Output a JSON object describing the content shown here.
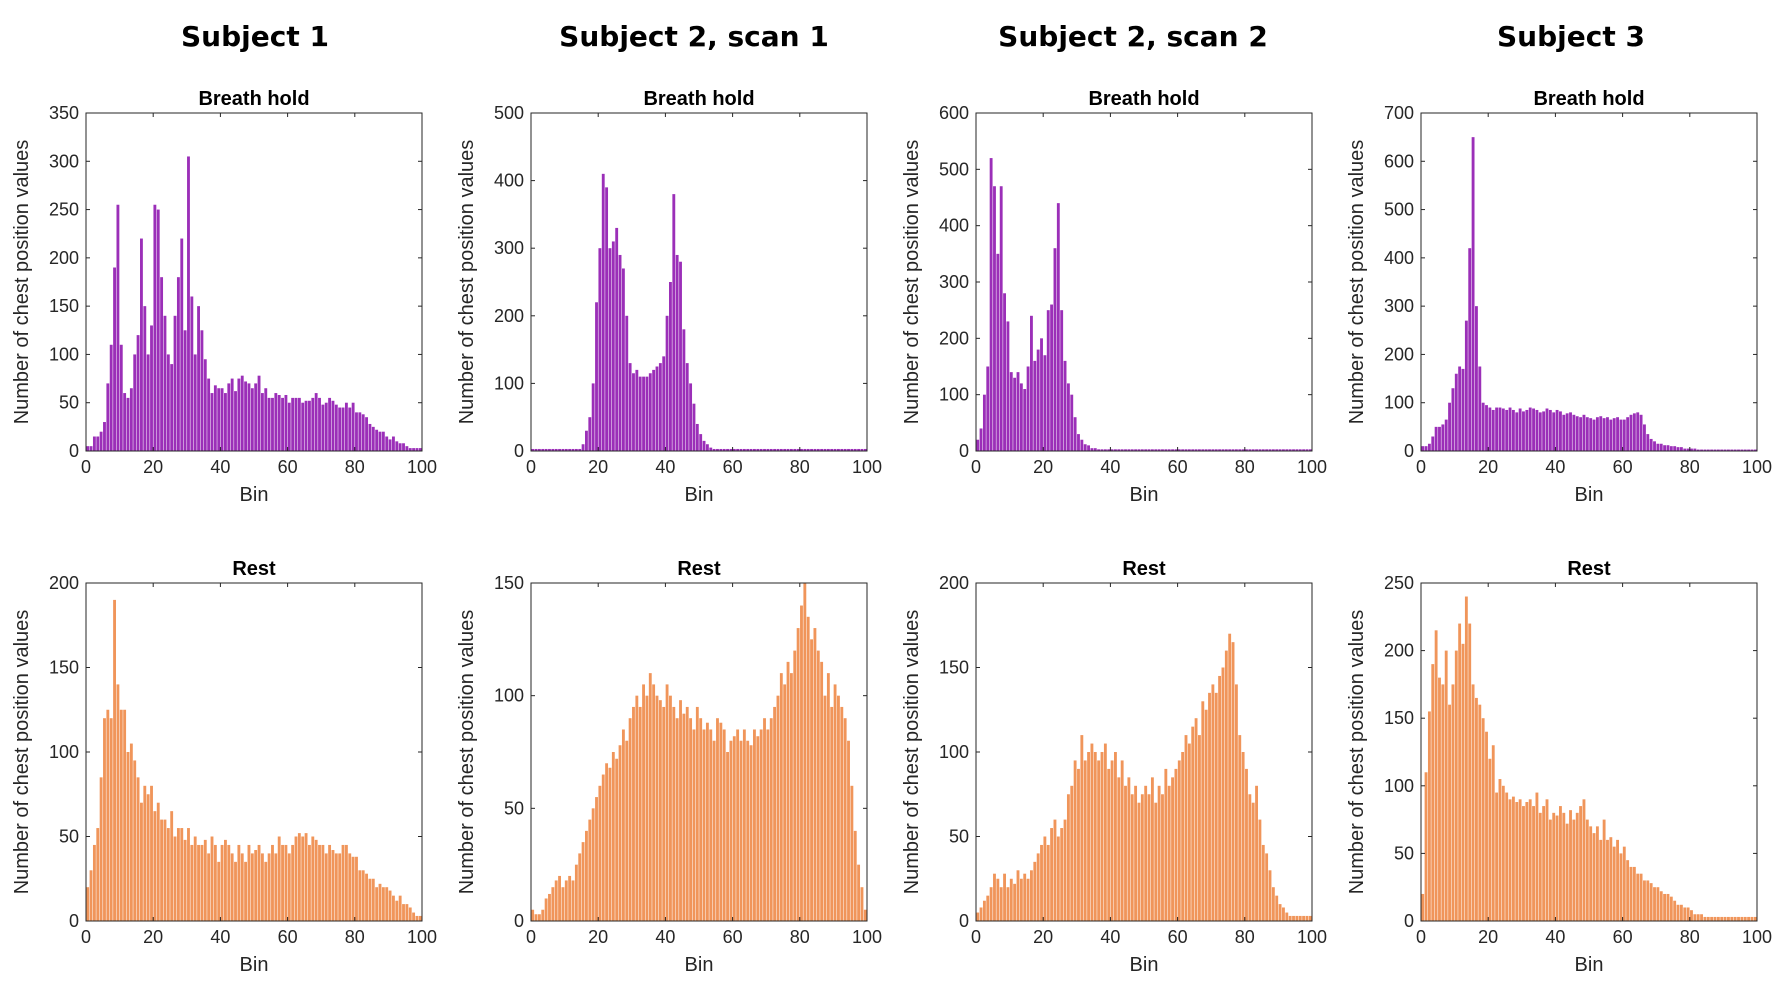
{
  "figure": {
    "column_titles": [
      "Subject 1",
      "Subject 2, scan 1",
      "Subject 2, scan 2",
      "Subject 3"
    ]
  },
  "colors": {
    "breath_hold": "#9b2fb8",
    "rest": "#f0955a"
  },
  "chart_data": [
    {
      "type": "bar",
      "title": "Breath hold",
      "xlabel": "Bin",
      "ylabel": "Number of chest position values",
      "xlim": [
        0,
        100
      ],
      "ylim": [
        0,
        350
      ],
      "xticks": [
        0,
        20,
        40,
        60,
        80,
        100
      ],
      "yticks": [
        0,
        50,
        100,
        150,
        200,
        250,
        300,
        350
      ],
      "series_key": "breath_hold",
      "values": [
        5,
        5,
        15,
        15,
        20,
        30,
        70,
        110,
        190,
        255,
        110,
        60,
        55,
        65,
        100,
        120,
        220,
        150,
        100,
        130,
        255,
        250,
        180,
        140,
        100,
        90,
        140,
        180,
        220,
        125,
        305,
        160,
        100,
        150,
        125,
        95,
        75,
        60,
        68,
        65,
        65,
        60,
        70,
        75,
        62,
        75,
        78,
        72,
        70,
        65,
        70,
        78,
        60,
        65,
        55,
        55,
        60,
        58,
        55,
        58,
        50,
        55,
        55,
        55,
        50,
        52,
        52,
        55,
        60,
        55,
        48,
        50,
        55,
        52,
        48,
        45,
        45,
        50,
        45,
        50,
        40,
        40,
        38,
        35,
        28,
        25,
        22,
        20,
        20,
        15,
        12,
        15,
        10,
        8,
        8,
        5,
        3,
        3,
        3,
        3
      ]
    },
    {
      "type": "bar",
      "title": "Breath hold",
      "xlabel": "Bin",
      "ylabel": "Number of chest position values",
      "xlim": [
        0,
        100
      ],
      "ylim": [
        0,
        500
      ],
      "xticks": [
        0,
        20,
        40,
        60,
        80,
        100
      ],
      "yticks": [
        0,
        100,
        200,
        300,
        400,
        500
      ],
      "series_key": "breath_hold",
      "values": [
        3,
        3,
        3,
        3,
        3,
        3,
        3,
        3,
        3,
        3,
        3,
        3,
        3,
        3,
        3,
        10,
        30,
        50,
        100,
        220,
        300,
        410,
        390,
        300,
        310,
        330,
        290,
        270,
        200,
        130,
        115,
        120,
        110,
        110,
        110,
        115,
        120,
        125,
        130,
        140,
        200,
        250,
        380,
        290,
        280,
        180,
        130,
        100,
        70,
        40,
        25,
        15,
        10,
        5,
        3,
        3,
        3,
        3,
        3,
        3,
        3,
        3,
        3,
        3,
        3,
        3,
        3,
        3,
        3,
        3,
        3,
        3,
        3,
        3,
        3,
        3,
        3,
        3,
        3,
        3,
        3,
        3,
        3,
        3,
        3,
        3,
        3,
        3,
        3,
        3,
        3,
        3,
        3,
        3,
        3,
        3,
        3,
        3,
        3,
        3
      ]
    },
    {
      "type": "bar",
      "title": "Breath hold",
      "xlabel": "Bin",
      "ylabel": "Number of chest position values",
      "xlim": [
        0,
        100
      ],
      "ylim": [
        0,
        600
      ],
      "xticks": [
        0,
        20,
        40,
        60,
        80,
        100
      ],
      "yticks": [
        0,
        100,
        200,
        300,
        400,
        500,
        600
      ],
      "series_key": "breath_hold",
      "values": [
        20,
        40,
        100,
        150,
        520,
        470,
        350,
        470,
        280,
        230,
        140,
        130,
        140,
        120,
        110,
        150,
        240,
        160,
        180,
        200,
        170,
        250,
        260,
        360,
        440,
        250,
        160,
        120,
        100,
        60,
        30,
        20,
        12,
        10,
        5,
        5,
        3,
        3,
        3,
        3,
        3,
        3,
        3,
        3,
        3,
        3,
        3,
        3,
        3,
        3,
        3,
        3,
        3,
        3,
        3,
        3,
        3,
        3,
        3,
        3,
        3,
        3,
        3,
        3,
        3,
        3,
        3,
        3,
        3,
        3,
        3,
        3,
        3,
        3,
        3,
        3,
        3,
        3,
        3,
        3,
        3,
        3,
        3,
        3,
        3,
        3,
        3,
        3,
        3,
        3,
        3,
        3,
        3,
        3,
        3,
        3,
        3,
        3,
        3,
        3
      ]
    },
    {
      "type": "bar",
      "title": "Breath hold",
      "xlabel": "Bin",
      "ylabel": "Number of chest position values",
      "xlim": [
        0,
        100
      ],
      "ylim": [
        0,
        700
      ],
      "xticks": [
        0,
        20,
        40,
        60,
        80,
        100
      ],
      "yticks": [
        0,
        100,
        200,
        300,
        400,
        500,
        600,
        700
      ],
      "series_key": "breath_hold",
      "values": [
        10,
        10,
        15,
        30,
        50,
        50,
        55,
        65,
        100,
        130,
        160,
        175,
        170,
        270,
        420,
        650,
        300,
        175,
        100,
        95,
        90,
        85,
        90,
        90,
        88,
        85,
        90,
        85,
        80,
        88,
        82,
        85,
        90,
        88,
        85,
        80,
        82,
        88,
        85,
        80,
        85,
        82,
        75,
        78,
        80,
        75,
        72,
        70,
        75,
        70,
        68,
        65,
        70,
        72,
        68,
        70,
        65,
        68,
        70,
        65,
        65,
        70,
        75,
        78,
        80,
        75,
        55,
        35,
        25,
        20,
        15,
        15,
        12,
        12,
        10,
        10,
        8,
        8,
        5,
        5,
        5,
        5,
        3,
        3,
        3,
        3,
        3,
        3,
        3,
        3,
        3,
        3,
        3,
        3,
        3,
        3,
        3,
        3,
        3,
        3
      ]
    },
    {
      "type": "bar",
      "title": "Rest",
      "xlabel": "Bin",
      "ylabel": "Number of chest position values",
      "xlim": [
        0,
        100
      ],
      "ylim": [
        0,
        200
      ],
      "xticks": [
        0,
        20,
        40,
        60,
        80,
        100
      ],
      "yticks": [
        0,
        50,
        100,
        150,
        200
      ],
      "series_key": "rest",
      "values": [
        20,
        30,
        45,
        55,
        85,
        120,
        125,
        120,
        190,
        140,
        125,
        125,
        100,
        105,
        95,
        85,
        70,
        80,
        75,
        80,
        65,
        70,
        60,
        60,
        55,
        65,
        50,
        55,
        55,
        48,
        55,
        45,
        50,
        45,
        45,
        48,
        40,
        50,
        45,
        35,
        45,
        48,
        45,
        40,
        35,
        45,
        40,
        35,
        45,
        40,
        42,
        45,
        40,
        35,
        40,
        45,
        40,
        50,
        45,
        45,
        40,
        45,
        50,
        52,
        50,
        52,
        45,
        50,
        48,
        45,
        45,
        40,
        45,
        42,
        40,
        40,
        45,
        45,
        40,
        38,
        38,
        30,
        30,
        28,
        25,
        25,
        20,
        22,
        20,
        20,
        18,
        15,
        12,
        15,
        10,
        10,
        8,
        5,
        3,
        3
      ]
    },
    {
      "type": "bar",
      "title": "Rest",
      "xlabel": "Bin",
      "ylabel": "Number of chest position values",
      "xlim": [
        0,
        100
      ],
      "ylim": [
        0,
        150
      ],
      "xticks": [
        0,
        20,
        40,
        60,
        80,
        100
      ],
      "yticks": [
        0,
        50,
        100,
        150
      ],
      "series_key": "rest",
      "values": [
        5,
        3,
        3,
        5,
        10,
        12,
        15,
        18,
        20,
        15,
        18,
        20,
        18,
        25,
        30,
        35,
        40,
        45,
        50,
        55,
        60,
        65,
        70,
        68,
        75,
        72,
        78,
        85,
        80,
        90,
        95,
        100,
        95,
        105,
        100,
        110,
        105,
        100,
        98,
        95,
        105,
        100,
        95,
        90,
        98,
        92,
        95,
        90,
        85,
        95,
        90,
        85,
        88,
        85,
        80,
        90,
        88,
        85,
        75,
        80,
        82,
        85,
        80,
        85,
        80,
        78,
        85,
        82,
        85,
        90,
        85,
        90,
        95,
        100,
        110,
        105,
        115,
        110,
        120,
        130,
        140,
        150,
        135,
        125,
        130,
        120,
        115,
        100,
        110,
        95,
        105,
        100,
        95,
        90,
        80,
        60,
        40,
        25,
        15,
        5
      ]
    },
    {
      "type": "bar",
      "title": "Rest",
      "xlabel": "Bin",
      "ylabel": "Number of chest position values",
      "xlim": [
        0,
        100
      ],
      "ylim": [
        0,
        200
      ],
      "xticks": [
        0,
        20,
        40,
        60,
        80,
        100
      ],
      "yticks": [
        0,
        50,
        100,
        150,
        200
      ],
      "series_key": "rest",
      "values": [
        5,
        8,
        12,
        15,
        20,
        28,
        25,
        20,
        28,
        20,
        25,
        22,
        30,
        25,
        28,
        25,
        30,
        35,
        40,
        45,
        50,
        45,
        55,
        60,
        50,
        55,
        60,
        75,
        80,
        95,
        90,
        110,
        95,
        100,
        105,
        100,
        95,
        100,
        105,
        90,
        95,
        100,
        85,
        95,
        80,
        85,
        75,
        80,
        70,
        75,
        80,
        75,
        85,
        70,
        80,
        75,
        90,
        80,
        85,
        90,
        95,
        100,
        110,
        105,
        115,
        120,
        110,
        130,
        125,
        135,
        140,
        135,
        145,
        150,
        160,
        170,
        165,
        140,
        110,
        100,
        90,
        75,
        70,
        80,
        60,
        45,
        40,
        30,
        20,
        15,
        10,
        8,
        5,
        3,
        3,
        3,
        3,
        3,
        3,
        3
      ]
    },
    {
      "type": "bar",
      "title": "Rest",
      "xlabel": "Bin",
      "ylabel": "Number of chest position values",
      "xlim": [
        0,
        100
      ],
      "ylim": [
        0,
        250
      ],
      "xticks": [
        0,
        20,
        40,
        60,
        80,
        100
      ],
      "yticks": [
        0,
        50,
        100,
        150,
        200,
        250
      ],
      "series_key": "rest",
      "values": [
        20,
        110,
        155,
        190,
        215,
        180,
        175,
        200,
        160,
        175,
        200,
        220,
        205,
        240,
        220,
        175,
        165,
        160,
        150,
        140,
        120,
        130,
        95,
        105,
        100,
        95,
        90,
        92,
        88,
        90,
        85,
        88,
        90,
        85,
        95,
        80,
        85,
        90,
        75,
        80,
        78,
        85,
        80,
        72,
        82,
        75,
        80,
        85,
        90,
        75,
        70,
        65,
        70,
        60,
        75,
        60,
        62,
        55,
        60,
        50,
        55,
        45,
        40,
        40,
        35,
        35,
        30,
        30,
        28,
        25,
        25,
        22,
        20,
        20,
        18,
        15,
        12,
        12,
        10,
        10,
        8,
        5,
        5,
        5,
        3,
        3,
        3,
        3,
        3,
        3,
        3,
        3,
        3,
        3,
        3,
        3,
        3,
        3,
        3,
        3
      ]
    }
  ]
}
